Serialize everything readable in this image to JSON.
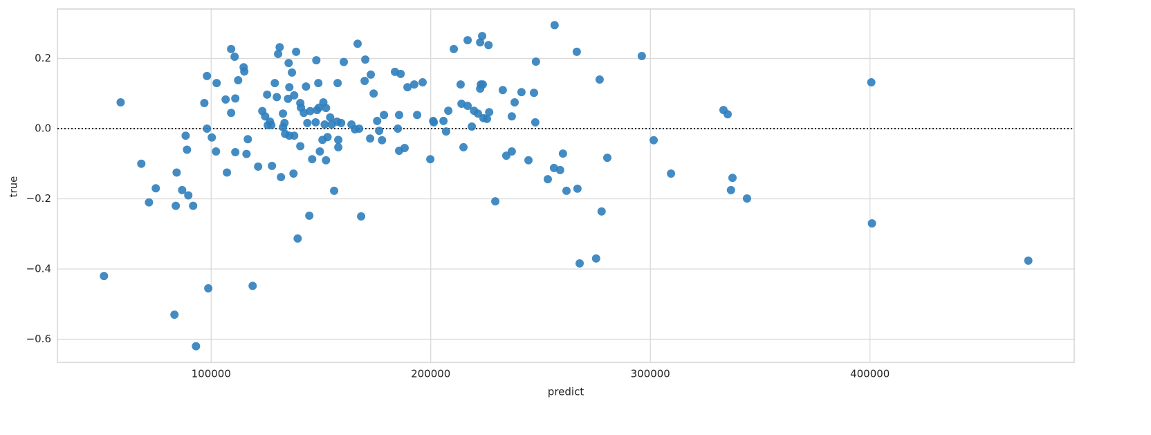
{
  "chart_data": {
    "type": "scatter",
    "xlabel": "predict",
    "ylabel": "true",
    "color": "#2f7ebc",
    "grid": true,
    "hline": 0,
    "xlim": [
      30000,
      493000
    ],
    "ylim": [
      -0.666,
      0.341
    ],
    "xticks": [
      100000,
      200000,
      300000,
      400000
    ],
    "yticks": [
      {
        "value": -0.6,
        "label": "−0.6"
      },
      {
        "value": -0.4,
        "label": "−0.4"
      },
      {
        "value": -0.2,
        "label": "−0.2"
      },
      {
        "value": 0,
        "label": "0.0"
      },
      0.2
    ],
    "x": [
      51200,
      58800,
      68200,
      71700,
      74800,
      83300,
      83900,
      84300,
      86800,
      88400,
      89000,
      89600,
      91800,
      93100,
      96900,
      98100,
      98100,
      98700,
      100300,
      102200,
      102500,
      106600,
      107200,
      109100,
      109100,
      110700,
      111000,
      111000,
      112300,
      114800,
      115100,
      116100,
      116700,
      118900,
      121400,
      123300,
      124600,
      125500,
      125800,
      126800,
      127400,
      127700,
      129000,
      129900,
      130500,
      131200,
      131800,
      132700,
      132700,
      133400,
      133700,
      135000,
      135300,
      135600,
      135600,
      136800,
      137500,
      137800,
      137800,
      138700,
      139400,
      140600,
      140600,
      140900,
      142200,
      143200,
      143800,
      144700,
      145100,
      146000,
      147600,
      147900,
      148200,
      148800,
      149100,
      149500,
      150700,
      151100,
      151700,
      152300,
      152300,
      153000,
      154200,
      154900,
      156000,
      157300,
      157600,
      157900,
      157900,
      159200,
      160400,
      163900,
      165500,
      166700,
      167400,
      168300,
      169900,
      170200,
      172400,
      172700,
      174000,
      175600,
      176500,
      177800,
      178700,
      183700,
      185000,
      185600,
      185600,
      186300,
      188100,
      189400,
      192500,
      193800,
      196300,
      199800,
      201100,
      201400,
      205800,
      207000,
      208000,
      210500,
      213600,
      214000,
      214900,
      216800,
      216800,
      218700,
      219700,
      221500,
      222500,
      222500,
      222800,
      223400,
      223700,
      224000,
      225600,
      226300,
      226600,
      229400,
      232800,
      234400,
      236900,
      236900,
      238200,
      241300,
      244500,
      247000,
      247600,
      247900,
      253300,
      256100,
      256400,
      258900,
      260200,
      261800,
      266500,
      266800,
      267800,
      275300,
      276900,
      277800,
      280400,
      296100,
      301500,
      309400,
      333300,
      335200,
      336700,
      337400,
      344000,
      400600,
      400900,
      472100
    ],
    "values": [
      -0.42,
      0.075,
      -0.1,
      -0.21,
      -0.17,
      -0.53,
      -0.22,
      -0.125,
      -0.175,
      -0.02,
      -0.06,
      -0.19,
      -0.22,
      -0.62,
      0.073,
      0.15,
      0.0,
      -0.455,
      -0.025,
      -0.065,
      0.13,
      0.083,
      -0.125,
      0.227,
      0.045,
      0.205,
      0.086,
      -0.067,
      0.138,
      0.175,
      0.163,
      -0.072,
      -0.03,
      -0.448,
      -0.108,
      0.05,
      0.035,
      0.097,
      0.01,
      0.02,
      0.01,
      -0.106,
      0.13,
      0.09,
      0.213,
      0.232,
      -0.138,
      0.043,
      0.004,
      0.016,
      -0.015,
      0.085,
      0.187,
      0.118,
      -0.02,
      0.16,
      -0.128,
      0.095,
      -0.02,
      0.219,
      -0.313,
      0.073,
      -0.05,
      0.06,
      0.045,
      0.12,
      0.016,
      -0.248,
      0.05,
      -0.087,
      0.018,
      0.195,
      0.053,
      0.13,
      0.06,
      -0.065,
      -0.032,
      0.075,
      0.012,
      0.059,
      -0.09,
      -0.024,
      0.032,
      0.012,
      -0.177,
      0.02,
      0.13,
      -0.032,
      -0.053,
      0.016,
      0.19,
      0.012,
      -0.002,
      0.242,
      0.0,
      -0.25,
      0.136,
      0.197,
      -0.028,
      0.154,
      0.1,
      0.022,
      -0.006,
      -0.033,
      0.039,
      0.162,
      0.0,
      -0.063,
      0.039,
      0.156,
      -0.055,
      0.118,
      0.126,
      0.039,
      0.132,
      -0.087,
      0.022,
      0.018,
      0.022,
      -0.008,
      0.051,
      0.227,
      0.126,
      0.071,
      -0.053,
      0.252,
      0.065,
      0.006,
      0.051,
      0.043,
      0.246,
      0.114,
      0.126,
      0.264,
      0.126,
      0.03,
      0.028,
      0.238,
      0.047,
      -0.207,
      0.11,
      -0.077,
      -0.065,
      0.035,
      0.075,
      0.104,
      -0.09,
      0.102,
      0.018,
      0.191,
      -0.144,
      -0.112,
      0.295,
      -0.118,
      -0.071,
      -0.177,
      0.219,
      -0.171,
      -0.384,
      -0.37,
      0.14,
      -0.236,
      -0.083,
      0.207,
      -0.033,
      -0.128,
      0.053,
      0.041,
      -0.175,
      -0.14,
      -0.199,
      0.132,
      -0.27,
      -0.376
    ]
  }
}
